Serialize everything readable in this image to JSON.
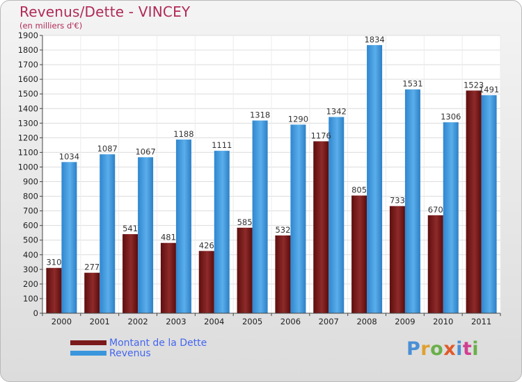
{
  "header": {
    "title": "Revenus/Dette - VINCEY",
    "subtitle": "(en milliers d'€)"
  },
  "legend": {
    "debt_label": "Montant de la Dette",
    "revenue_label": "Revenus",
    "text_color": "#4466ee"
  },
  "logo": {
    "letters": [
      "P",
      "r",
      "o",
      "x",
      "i",
      "t",
      "i"
    ],
    "colors": [
      "#4a8fd6",
      "#e0a030",
      "#6ab04a",
      "#e05a2a",
      "#4a8fd6",
      "#d04090",
      "#6ab04a"
    ]
  },
  "colors": {
    "debt": "#7b1a1a",
    "revenue": "#3a96dc",
    "title": "#b02a55"
  },
  "chart_data": {
    "type": "bar",
    "categories": [
      "2000",
      "2001",
      "2002",
      "2003",
      "2004",
      "2005",
      "2006",
      "2007",
      "2008",
      "2009",
      "2010",
      "2011"
    ],
    "series": [
      {
        "name": "Montant de la Dette",
        "values": [
          310,
          277,
          541,
          481,
          426,
          585,
          532,
          1176,
          805,
          733,
          670,
          1523
        ]
      },
      {
        "name": "Revenus",
        "values": [
          1034,
          1087,
          1067,
          1188,
          1111,
          1318,
          1290,
          1342,
          1834,
          1531,
          1306,
          1491
        ]
      }
    ],
    "title": "Revenus/Dette - VINCEY",
    "ylabel": "(en milliers d'€)",
    "ylim": [
      0,
      1900
    ],
    "yticks": [
      0,
      100,
      200,
      300,
      400,
      500,
      600,
      700,
      800,
      900,
      1000,
      1100,
      1200,
      1300,
      1400,
      1500,
      1600,
      1700,
      1800,
      1900
    ],
    "grid": true,
    "legend_position": "bottom-left"
  }
}
